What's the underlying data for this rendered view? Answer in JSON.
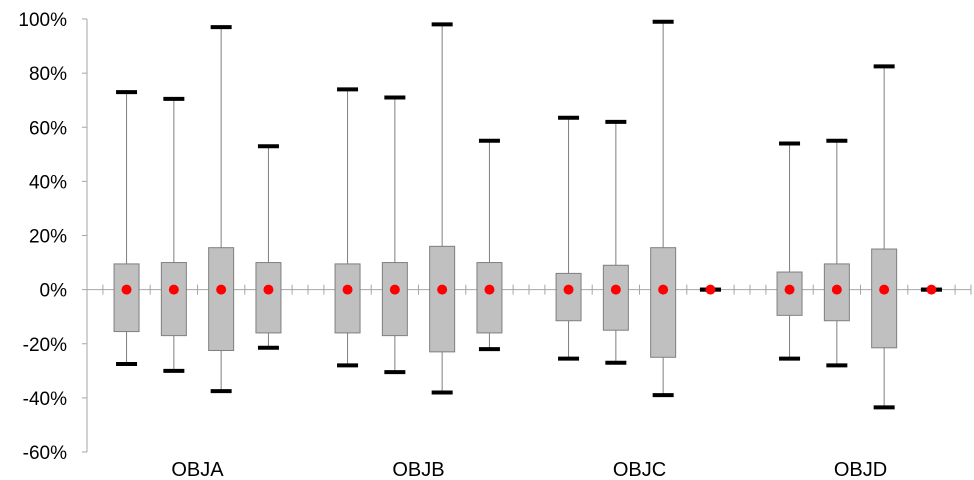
{
  "chart_data": {
    "type": "box",
    "title": "",
    "xlabel": "",
    "ylabel": "",
    "ylim": [
      -60,
      100
    ],
    "y_ticks": [
      -60,
      -40,
      -20,
      0,
      20,
      40,
      60,
      80,
      100
    ],
    "y_tick_labels": [
      "-60%",
      "-40%",
      "-20%",
      "0%",
      "20%",
      "40%",
      "60%",
      "80%",
      "100%"
    ],
    "grid": false,
    "categories": [
      "OBJA",
      "OBJB",
      "OBJC",
      "OBJD"
    ],
    "colors": {
      "box_fill": "#c0c0c0",
      "box_stroke": "#7f7f7f",
      "whisker": "#7f7f7f",
      "cap": "#000000",
      "median_marker": "#ff0000",
      "axis": "#a6a6a6"
    },
    "groups": [
      {
        "category": "OBJA",
        "boxes": [
          {
            "min": -27.5,
            "q1": -15.5,
            "median": 0,
            "q3": 9.5,
            "max": 73
          },
          {
            "min": -30,
            "q1": -17,
            "median": 0,
            "q3": 10,
            "max": 70.5
          },
          {
            "min": -37.5,
            "q1": -22.5,
            "median": 0,
            "q3": 15.5,
            "max": 97
          },
          {
            "min": -21.5,
            "q1": -16,
            "median": 0,
            "q3": 10,
            "max": 53
          }
        ]
      },
      {
        "category": "OBJB",
        "boxes": [
          {
            "min": -28,
            "q1": -16,
            "median": 0,
            "q3": 9.5,
            "max": 74
          },
          {
            "min": -30.5,
            "q1": -17,
            "median": 0,
            "q3": 10,
            "max": 71
          },
          {
            "min": -38,
            "q1": -23,
            "median": 0,
            "q3": 16,
            "max": 98
          },
          {
            "min": -22,
            "q1": -16,
            "median": 0,
            "q3": 10,
            "max": 55
          }
        ]
      },
      {
        "category": "OBJC",
        "boxes": [
          {
            "min": -25.5,
            "q1": -11.5,
            "median": 0,
            "q3": 6,
            "max": 63.5
          },
          {
            "min": -27,
            "q1": -15,
            "median": 0,
            "q3": 9,
            "max": 62
          },
          {
            "min": -39,
            "q1": -25,
            "median": 0,
            "q3": 15.5,
            "max": 99
          },
          {
            "min": 0,
            "q1": 0,
            "median": 0,
            "q3": 0,
            "max": 0
          }
        ]
      },
      {
        "category": "OBJD",
        "boxes": [
          {
            "min": -25.5,
            "q1": -9.5,
            "median": 0,
            "q3": 6.5,
            "max": 54
          },
          {
            "min": -28,
            "q1": -11.5,
            "median": 0,
            "q3": 9.5,
            "max": 55
          },
          {
            "min": -43.5,
            "q1": -21.5,
            "median": 0,
            "q3": 15,
            "max": 82.5
          },
          {
            "min": 0,
            "q1": 0,
            "median": 0,
            "q3": 0,
            "max": 0
          }
        ]
      }
    ]
  }
}
